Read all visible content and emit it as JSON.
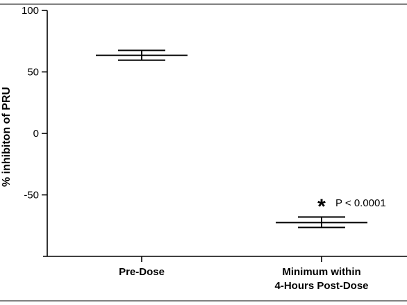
{
  "chart_data": {
    "type": "scatter",
    "title": "",
    "ylabel": "% inhibiton of PRU",
    "xlabel": "",
    "ylim": [
      -100,
      100
    ],
    "yticks": [
      100,
      50,
      0,
      -50
    ],
    "grid": false,
    "categories": [
      [
        "Pre-Dose"
      ],
      [
        "Minimum within",
        "4-Hours Post-Dose"
      ]
    ],
    "series": [
      {
        "means": [
          63.5,
          -72.5
        ],
        "upper": [
          67.5,
          -68.0
        ],
        "lower": [
          59.5,
          -76.5
        ]
      }
    ],
    "annotations": [
      {
        "category_index": 1,
        "symbol": "*",
        "text": "P < 0.0001"
      }
    ]
  }
}
